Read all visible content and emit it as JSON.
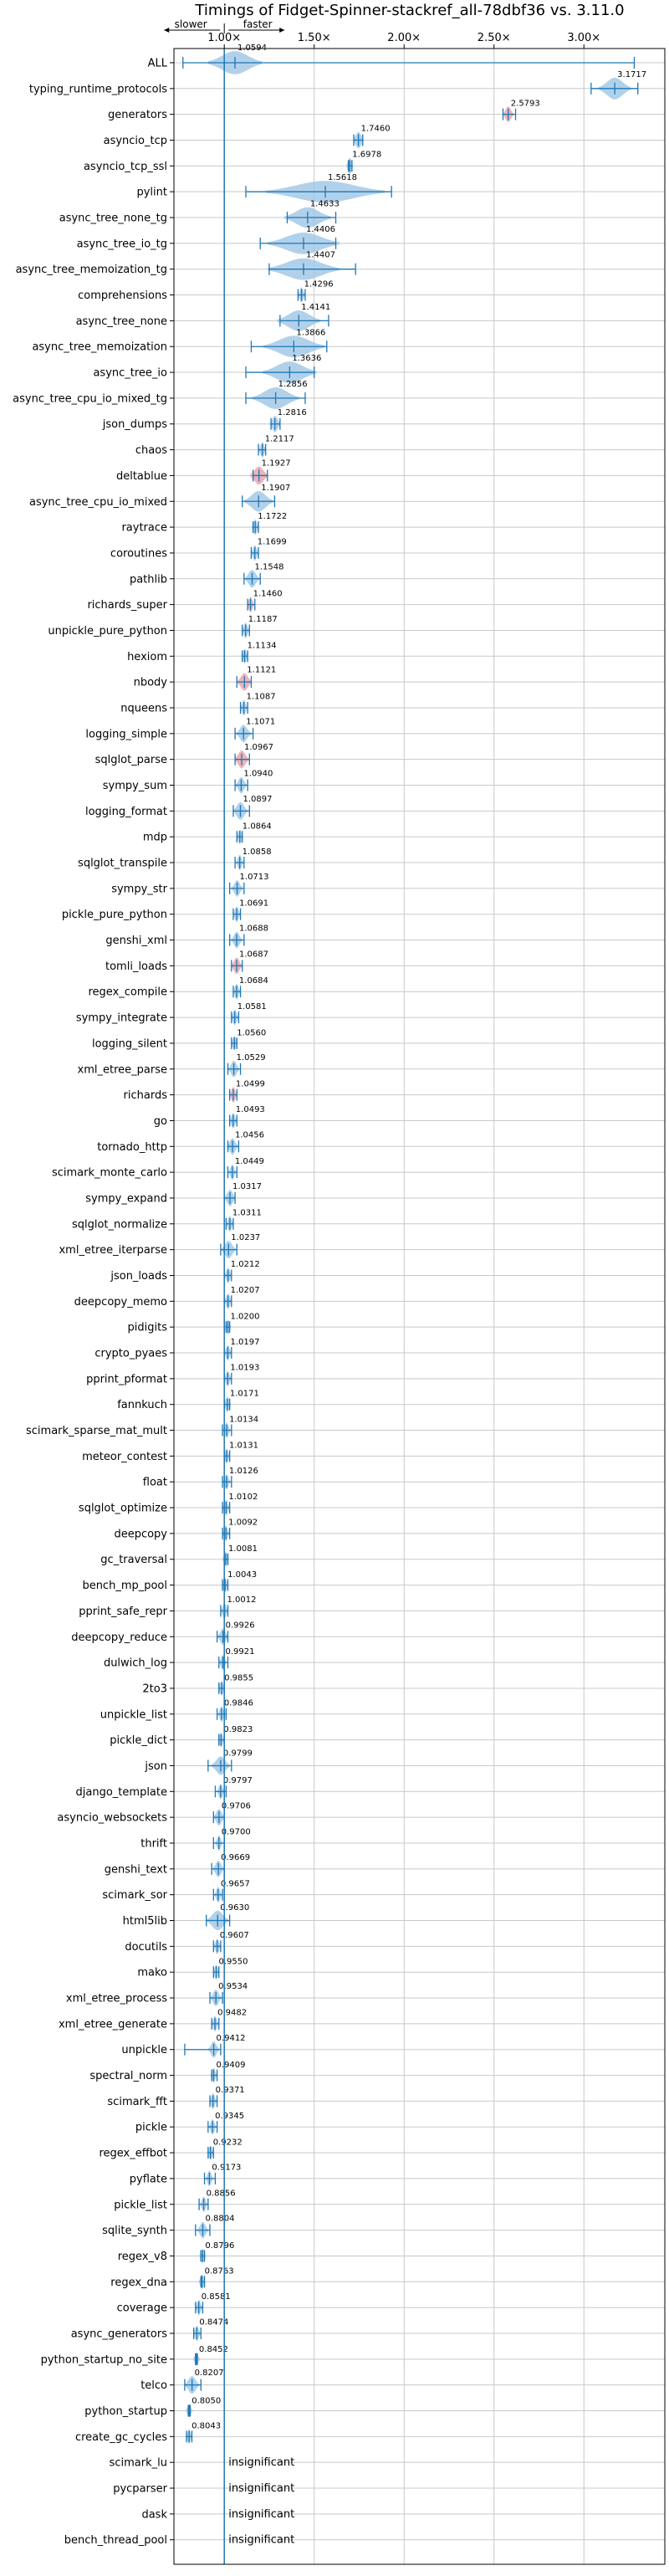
{
  "chart_data": {
    "type": "violin",
    "title": "Timings of Fidget-Spinner-stackref_all-78dbf36 vs. 3.11.0",
    "direction_labels": {
      "slower": "slower",
      "faster": "faster"
    },
    "xlim": [
      0.72,
      3.45
    ],
    "x_ticks": [
      1.0,
      1.5,
      2.0,
      2.5,
      3.0
    ],
    "x_tick_labels": [
      "1.00×",
      "1.50×",
      "2.00×",
      "2.50×",
      "3.00×"
    ],
    "reference_line": 1.0,
    "grid": true,
    "colors": {
      "violin": "#1f77b4",
      "violin_fill": "#9ec6e6",
      "red_violin": "#e8a0a8",
      "axis": "#000000",
      "grid": "#c8c8c8"
    },
    "insignificant_label": "insignificant",
    "benchmarks": [
      {
        "name": "ALL",
        "value": 1.0594,
        "label": "1.0594",
        "lo": 0.77,
        "hi": 3.28,
        "spread": 0.15,
        "h": 0.45
      },
      {
        "name": "typing_runtime_protocols",
        "value": 3.1717,
        "label": "3.1717",
        "lo": 3.04,
        "hi": 3.3,
        "spread": 0.09,
        "h": 0.42
      },
      {
        "name": "generators",
        "value": 2.5793,
        "label": "2.5793",
        "lo": 2.55,
        "hi": 2.62,
        "spread": 0.03,
        "h": 0.3,
        "red": true
      },
      {
        "name": "asyncio_tcp",
        "value": 1.746,
        "label": "1.7460",
        "lo": 1.72,
        "hi": 1.77,
        "spread": 0.03,
        "h": 0.32
      },
      {
        "name": "asyncio_tcp_ssl",
        "value": 1.6978,
        "label": "1.6978",
        "lo": 1.69,
        "hi": 1.71,
        "spread": 0.01,
        "h": 0.32
      },
      {
        "name": "pylint",
        "value": 1.5618,
        "label": "1.5618",
        "lo": 1.12,
        "hi": 1.93,
        "spread": 0.33,
        "h": 0.42
      },
      {
        "name": "async_tree_none_tg",
        "value": 1.4633,
        "label": "1.4633",
        "lo": 1.35,
        "hi": 1.62,
        "spread": 0.13,
        "h": 0.4
      },
      {
        "name": "async_tree_io_tg",
        "value": 1.4406,
        "label": "1.4406",
        "lo": 1.2,
        "hi": 1.62,
        "spread": 0.2,
        "h": 0.42
      },
      {
        "name": "async_tree_memoization_tg",
        "value": 1.4407,
        "label": "1.4407",
        "lo": 1.25,
        "hi": 1.73,
        "spread": 0.2,
        "h": 0.42
      },
      {
        "name": "comprehensions",
        "value": 1.4296,
        "label": "1.4296",
        "lo": 1.41,
        "hi": 1.45,
        "spread": 0.02,
        "h": 0.3
      },
      {
        "name": "async_tree_none",
        "value": 1.4141,
        "label": "1.4141",
        "lo": 1.31,
        "hi": 1.58,
        "spread": 0.12,
        "h": 0.4
      },
      {
        "name": "async_tree_memoization",
        "value": 1.3866,
        "label": "1.3866",
        "lo": 1.15,
        "hi": 1.57,
        "spread": 0.17,
        "h": 0.42
      },
      {
        "name": "async_tree_io",
        "value": 1.3636,
        "label": "1.3636",
        "lo": 1.12,
        "hi": 1.5,
        "spread": 0.15,
        "h": 0.42
      },
      {
        "name": "async_tree_cpu_io_mixed_tg",
        "value": 1.2856,
        "label": "1.2856",
        "lo": 1.12,
        "hi": 1.45,
        "spread": 0.13,
        "h": 0.42
      },
      {
        "name": "json_dumps",
        "value": 1.2816,
        "label": "1.2816",
        "lo": 1.26,
        "hi": 1.31,
        "spread": 0.03,
        "h": 0.32
      },
      {
        "name": "chaos",
        "value": 1.2117,
        "label": "1.2117",
        "lo": 1.19,
        "hi": 1.23,
        "spread": 0.02,
        "h": 0.3
      },
      {
        "name": "deltablue",
        "value": 1.1927,
        "label": "1.1927",
        "lo": 1.16,
        "hi": 1.24,
        "spread": 0.05,
        "h": 0.35,
        "red": true
      },
      {
        "name": "async_tree_cpu_io_mixed",
        "value": 1.1907,
        "label": "1.1907",
        "lo": 1.1,
        "hi": 1.28,
        "spread": 0.08,
        "h": 0.4
      },
      {
        "name": "raytrace",
        "value": 1.1722,
        "label": "1.1722",
        "lo": 1.16,
        "hi": 1.19,
        "spread": 0.02,
        "h": 0.3
      },
      {
        "name": "coroutines",
        "value": 1.1699,
        "label": "1.1699",
        "lo": 1.15,
        "hi": 1.19,
        "spread": 0.02,
        "h": 0.3
      },
      {
        "name": "pathlib",
        "value": 1.1548,
        "label": "1.1548",
        "lo": 1.11,
        "hi": 1.2,
        "spread": 0.04,
        "h": 0.34
      },
      {
        "name": "richards_super",
        "value": 1.146,
        "label": "1.1460",
        "lo": 1.13,
        "hi": 1.17,
        "spread": 0.02,
        "h": 0.3,
        "red": true
      },
      {
        "name": "unpickle_pure_python",
        "value": 1.1187,
        "label": "1.1187",
        "lo": 1.1,
        "hi": 1.14,
        "spread": 0.02,
        "h": 0.3
      },
      {
        "name": "hexiom",
        "value": 1.1134,
        "label": "1.1134",
        "lo": 1.1,
        "hi": 1.13,
        "spread": 0.01,
        "h": 0.28
      },
      {
        "name": "nbody",
        "value": 1.1121,
        "label": "1.1121",
        "lo": 1.07,
        "hi": 1.15,
        "spread": 0.04,
        "h": 0.34,
        "red": true
      },
      {
        "name": "nqueens",
        "value": 1.1087,
        "label": "1.1087",
        "lo": 1.09,
        "hi": 1.13,
        "spread": 0.02,
        "h": 0.3
      },
      {
        "name": "logging_simple",
        "value": 1.1071,
        "label": "1.1071",
        "lo": 1.06,
        "hi": 1.16,
        "spread": 0.04,
        "h": 0.34
      },
      {
        "name": "sqlglot_parse",
        "value": 1.0967,
        "label": "1.0967",
        "lo": 1.06,
        "hi": 1.14,
        "spread": 0.04,
        "h": 0.34,
        "red": true
      },
      {
        "name": "sympy_sum",
        "value": 1.094,
        "label": "1.0940",
        "lo": 1.06,
        "hi": 1.13,
        "spread": 0.03,
        "h": 0.32
      },
      {
        "name": "logging_format",
        "value": 1.0897,
        "label": "1.0897",
        "lo": 1.05,
        "hi": 1.14,
        "spread": 0.04,
        "h": 0.34
      },
      {
        "name": "mdp",
        "value": 1.0864,
        "label": "1.0864",
        "lo": 1.07,
        "hi": 1.1,
        "spread": 0.01,
        "h": 0.28
      },
      {
        "name": "sqlglot_transpile",
        "value": 1.0858,
        "label": "1.0858",
        "lo": 1.06,
        "hi": 1.11,
        "spread": 0.02,
        "h": 0.3
      },
      {
        "name": "sympy_str",
        "value": 1.0713,
        "label": "1.0713",
        "lo": 1.03,
        "hi": 1.11,
        "spread": 0.03,
        "h": 0.32
      },
      {
        "name": "pickle_pure_python",
        "value": 1.0691,
        "label": "1.0691",
        "lo": 1.05,
        "hi": 1.09,
        "spread": 0.02,
        "h": 0.3
      },
      {
        "name": "genshi_xml",
        "value": 1.0688,
        "label": "1.0688",
        "lo": 1.03,
        "hi": 1.11,
        "spread": 0.03,
        "h": 0.32
      },
      {
        "name": "tomli_loads",
        "value": 1.0687,
        "label": "1.0687",
        "lo": 1.04,
        "hi": 1.1,
        "spread": 0.03,
        "h": 0.32,
        "red": true
      },
      {
        "name": "regex_compile",
        "value": 1.0684,
        "label": "1.0684",
        "lo": 1.05,
        "hi": 1.09,
        "spread": 0.02,
        "h": 0.3
      },
      {
        "name": "sympy_integrate",
        "value": 1.0581,
        "label": "1.0581",
        "lo": 1.04,
        "hi": 1.08,
        "spread": 0.02,
        "h": 0.3
      },
      {
        "name": "logging_silent",
        "value": 1.056,
        "label": "1.0560",
        "lo": 1.04,
        "hi": 1.07,
        "spread": 0.01,
        "h": 0.28
      },
      {
        "name": "xml_etree_parse",
        "value": 1.0529,
        "label": "1.0529",
        "lo": 1.02,
        "hi": 1.09,
        "spread": 0.03,
        "h": 0.32
      },
      {
        "name": "richards",
        "value": 1.0499,
        "label": "1.0499",
        "lo": 1.03,
        "hi": 1.07,
        "spread": 0.02,
        "h": 0.3,
        "red": true
      },
      {
        "name": "go",
        "value": 1.0493,
        "label": "1.0493",
        "lo": 1.03,
        "hi": 1.07,
        "spread": 0.02,
        "h": 0.3
      },
      {
        "name": "tornado_http",
        "value": 1.0456,
        "label": "1.0456",
        "lo": 1.02,
        "hi": 1.08,
        "spread": 0.03,
        "h": 0.32
      },
      {
        "name": "scimark_monte_carlo",
        "value": 1.0449,
        "label": "1.0449",
        "lo": 1.02,
        "hi": 1.07,
        "spread": 0.02,
        "h": 0.3
      },
      {
        "name": "sympy_expand",
        "value": 1.0317,
        "label": "1.0317",
        "lo": 1.0,
        "hi": 1.06,
        "spread": 0.03,
        "h": 0.32
      },
      {
        "name": "sqlglot_normalize",
        "value": 1.0311,
        "label": "1.0311",
        "lo": 1.01,
        "hi": 1.05,
        "spread": 0.02,
        "h": 0.3
      },
      {
        "name": "xml_etree_iterparse",
        "value": 1.0237,
        "label": "1.0237",
        "lo": 0.98,
        "hi": 1.07,
        "spread": 0.04,
        "h": 0.34
      },
      {
        "name": "json_loads",
        "value": 1.0212,
        "label": "1.0212",
        "lo": 1.0,
        "hi": 1.04,
        "spread": 0.02,
        "h": 0.3
      },
      {
        "name": "deepcopy_memo",
        "value": 1.0207,
        "label": "1.0207",
        "lo": 1.0,
        "hi": 1.04,
        "spread": 0.02,
        "h": 0.3
      },
      {
        "name": "pidigits",
        "value": 1.02,
        "label": "1.0200",
        "lo": 1.01,
        "hi": 1.03,
        "spread": 0.01,
        "h": 0.28
      },
      {
        "name": "crypto_pyaes",
        "value": 1.0197,
        "label": "1.0197",
        "lo": 1.0,
        "hi": 1.04,
        "spread": 0.02,
        "h": 0.3
      },
      {
        "name": "pprint_pformat",
        "value": 1.0193,
        "label": "1.0193",
        "lo": 1.0,
        "hi": 1.04,
        "spread": 0.02,
        "h": 0.3
      },
      {
        "name": "fannkuch",
        "value": 1.0171,
        "label": "1.0171",
        "lo": 1.0,
        "hi": 1.03,
        "spread": 0.02,
        "h": 0.3
      },
      {
        "name": "scimark_sparse_mat_mult",
        "value": 1.0134,
        "label": "1.0134",
        "lo": 0.99,
        "hi": 1.04,
        "spread": 0.02,
        "h": 0.3
      },
      {
        "name": "meteor_contest",
        "value": 1.0131,
        "label": "1.0131",
        "lo": 1.0,
        "hi": 1.03,
        "spread": 0.01,
        "h": 0.28
      },
      {
        "name": "float",
        "value": 1.0126,
        "label": "1.0126",
        "lo": 0.99,
        "hi": 1.04,
        "spread": 0.02,
        "h": 0.3
      },
      {
        "name": "sqlglot_optimize",
        "value": 1.0102,
        "label": "1.0102",
        "lo": 0.99,
        "hi": 1.03,
        "spread": 0.02,
        "h": 0.3
      },
      {
        "name": "deepcopy",
        "value": 1.0092,
        "label": "1.0092",
        "lo": 0.99,
        "hi": 1.03,
        "spread": 0.02,
        "h": 0.3
      },
      {
        "name": "gc_traversal",
        "value": 1.0081,
        "label": "1.0081",
        "lo": 1.0,
        "hi": 1.02,
        "spread": 0.01,
        "h": 0.28
      },
      {
        "name": "bench_mp_pool",
        "value": 1.0043,
        "label": "1.0043",
        "lo": 0.99,
        "hi": 1.02,
        "spread": 0.01,
        "h": 0.28
      },
      {
        "name": "pprint_safe_repr",
        "value": 1.0012,
        "label": "1.0012",
        "lo": 0.98,
        "hi": 1.02,
        "spread": 0.02,
        "h": 0.3
      },
      {
        "name": "deepcopy_reduce",
        "value": 0.9926,
        "label": "0.9926",
        "lo": 0.96,
        "hi": 1.02,
        "spread": 0.03,
        "h": 0.32
      },
      {
        "name": "dulwich_log",
        "value": 0.9921,
        "label": "0.9921",
        "lo": 0.97,
        "hi": 1.02,
        "spread": 0.02,
        "h": 0.3
      },
      {
        "name": "2to3",
        "value": 0.9855,
        "label": "0.9855",
        "lo": 0.97,
        "hi": 1.0,
        "spread": 0.01,
        "h": 0.28
      },
      {
        "name": "unpickle_list",
        "value": 0.9846,
        "label": "0.9846",
        "lo": 0.96,
        "hi": 1.01,
        "spread": 0.02,
        "h": 0.3
      },
      {
        "name": "pickle_dict",
        "value": 0.9823,
        "label": "0.9823",
        "lo": 0.97,
        "hi": 1.0,
        "spread": 0.01,
        "h": 0.28
      },
      {
        "name": "json",
        "value": 0.9799,
        "label": "0.9799",
        "lo": 0.91,
        "hi": 1.04,
        "spread": 0.05,
        "h": 0.36
      },
      {
        "name": "django_template",
        "value": 0.9797,
        "label": "0.9797",
        "lo": 0.95,
        "hi": 1.01,
        "spread": 0.02,
        "h": 0.3
      },
      {
        "name": "asyncio_websockets",
        "value": 0.9706,
        "label": "0.9706",
        "lo": 0.94,
        "hi": 1.0,
        "spread": 0.03,
        "h": 0.32
      },
      {
        "name": "thrift",
        "value": 0.97,
        "label": "0.9700",
        "lo": 0.94,
        "hi": 1.0,
        "spread": 0.02,
        "h": 0.3
      },
      {
        "name": "genshi_text",
        "value": 0.9669,
        "label": "0.9669",
        "lo": 0.93,
        "hi": 1.0,
        "spread": 0.03,
        "h": 0.32
      },
      {
        "name": "scimark_sor",
        "value": 0.9657,
        "label": "0.9657",
        "lo": 0.94,
        "hi": 0.99,
        "spread": 0.02,
        "h": 0.3
      },
      {
        "name": "html5lib",
        "value": 0.963,
        "label": "0.9630",
        "lo": 0.9,
        "hi": 1.03,
        "spread": 0.06,
        "h": 0.38
      },
      {
        "name": "docutils",
        "value": 0.9607,
        "label": "0.9607",
        "lo": 0.94,
        "hi": 0.98,
        "spread": 0.02,
        "h": 0.3
      },
      {
        "name": "mako",
        "value": 0.955,
        "label": "0.9550",
        "lo": 0.94,
        "hi": 0.97,
        "spread": 0.01,
        "h": 0.28
      },
      {
        "name": "xml_etree_process",
        "value": 0.9534,
        "label": "0.9534",
        "lo": 0.92,
        "hi": 0.99,
        "spread": 0.03,
        "h": 0.32
      },
      {
        "name": "xml_etree_generate",
        "value": 0.9482,
        "label": "0.9482",
        "lo": 0.93,
        "hi": 0.97,
        "spread": 0.02,
        "h": 0.3
      },
      {
        "name": "unpickle",
        "value": 0.9412,
        "label": "0.9412",
        "lo": 0.78,
        "hi": 0.98,
        "spread": 0.03,
        "h": 0.32
      },
      {
        "name": "spectral_norm",
        "value": 0.9409,
        "label": "0.9409",
        "lo": 0.93,
        "hi": 0.96,
        "spread": 0.01,
        "h": 0.28
      },
      {
        "name": "scimark_fft",
        "value": 0.9371,
        "label": "0.9371",
        "lo": 0.92,
        "hi": 0.96,
        "spread": 0.02,
        "h": 0.3
      },
      {
        "name": "pickle",
        "value": 0.9345,
        "label": "0.9345",
        "lo": 0.91,
        "hi": 0.96,
        "spread": 0.02,
        "h": 0.3
      },
      {
        "name": "regex_effbot",
        "value": 0.9232,
        "label": "0.9232",
        "lo": 0.91,
        "hi": 0.94,
        "spread": 0.01,
        "h": 0.28
      },
      {
        "name": "pyflate",
        "value": 0.9173,
        "label": "0.9173",
        "lo": 0.89,
        "hi": 0.95,
        "spread": 0.02,
        "h": 0.3
      },
      {
        "name": "pickle_list",
        "value": 0.8856,
        "label": "0.8856",
        "lo": 0.86,
        "hi": 0.91,
        "spread": 0.02,
        "h": 0.3
      },
      {
        "name": "sqlite_synth",
        "value": 0.8804,
        "label": "0.8804",
        "lo": 0.84,
        "hi": 0.92,
        "spread": 0.03,
        "h": 0.32
      },
      {
        "name": "regex_v8",
        "value": 0.8796,
        "label": "0.8796",
        "lo": 0.87,
        "hi": 0.89,
        "spread": 0.01,
        "h": 0.28
      },
      {
        "name": "regex_dna",
        "value": 0.8763,
        "label": "0.8763",
        "lo": 0.87,
        "hi": 0.89,
        "spread": 0.01,
        "h": 0.28
      },
      {
        "name": "coverage",
        "value": 0.8581,
        "label": "0.8581",
        "lo": 0.84,
        "hi": 0.88,
        "spread": 0.02,
        "h": 0.3
      },
      {
        "name": "async_generators",
        "value": 0.8474,
        "label": "0.8474",
        "lo": 0.83,
        "hi": 0.87,
        "spread": 0.02,
        "h": 0.3
      },
      {
        "name": "python_startup_no_site",
        "value": 0.8452,
        "label": "0.8452",
        "lo": 0.84,
        "hi": 0.85,
        "spread": 0.005,
        "h": 0.26
      },
      {
        "name": "telco",
        "value": 0.8207,
        "label": "0.8207",
        "lo": 0.78,
        "hi": 0.87,
        "spread": 0.04,
        "h": 0.34
      },
      {
        "name": "python_startup",
        "value": 0.805,
        "label": "0.8050",
        "lo": 0.8,
        "hi": 0.81,
        "spread": 0.005,
        "h": 0.26
      },
      {
        "name": "create_gc_cycles",
        "value": 0.8043,
        "label": "0.8043",
        "lo": 0.79,
        "hi": 0.82,
        "spread": 0.01,
        "h": 0.28
      },
      {
        "name": "scimark_lu",
        "insignificant": true
      },
      {
        "name": "pycparser",
        "insignificant": true
      },
      {
        "name": "dask",
        "insignificant": true
      },
      {
        "name": "bench_thread_pool",
        "insignificant": true
      }
    ]
  }
}
